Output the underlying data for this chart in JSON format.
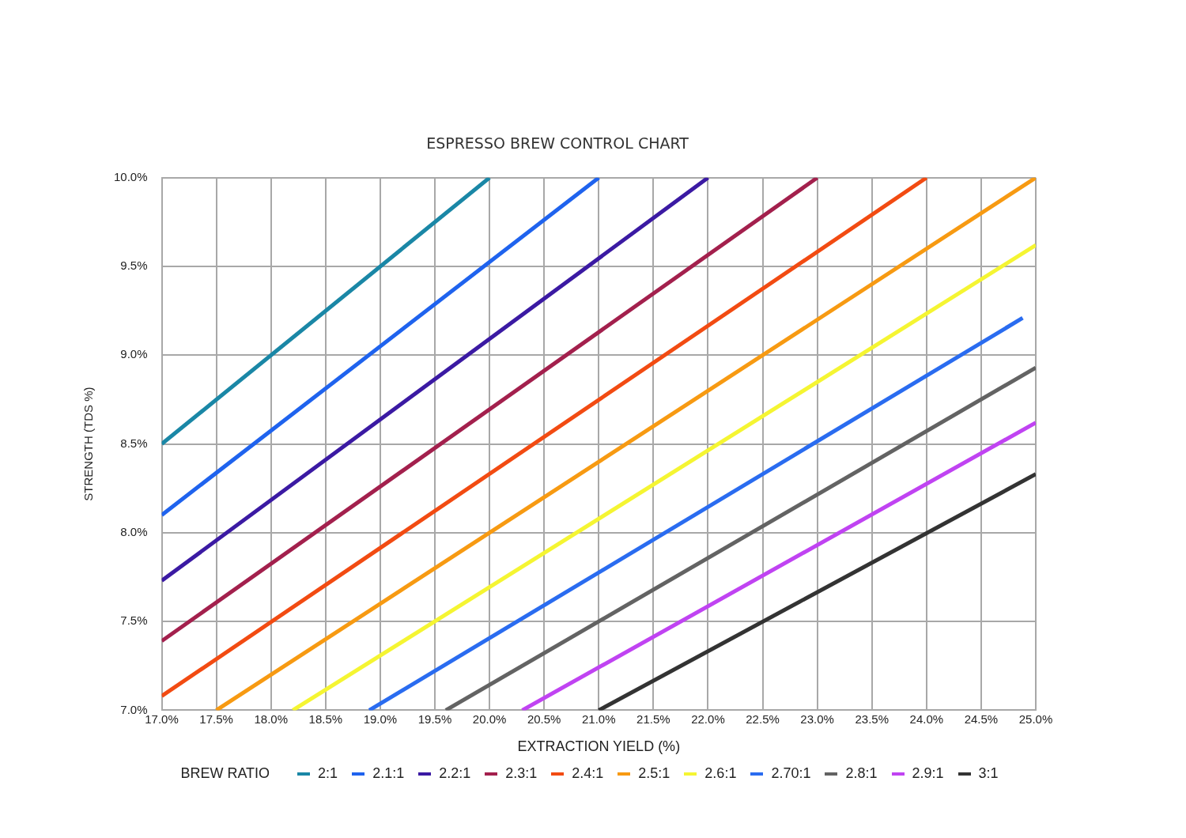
{
  "chart_data": {
    "type": "line",
    "title": "ESPRESSO BREW CONTROL CHART",
    "xlabel": "EXTRACTION YIELD (%)",
    "ylabel": "STRENGTH (TDS %)",
    "legend_title": "BREW RATIO",
    "legend": "bottom",
    "grid": true,
    "marker": "none",
    "line_style": "solid",
    "xlim": [
      17,
      25
    ],
    "ylim": [
      7,
      10
    ],
    "xticks": [
      {
        "value": 17,
        "label": "17.0%"
      },
      {
        "value": 17.5,
        "label": "17.5%"
      },
      {
        "value": 18,
        "label": "18.0%"
      },
      {
        "value": 18.5,
        "label": "18.5%"
      },
      {
        "value": 19,
        "label": "19.0%"
      },
      {
        "value": 19.5,
        "label": "19.5%"
      },
      {
        "value": 20,
        "label": "20.0%"
      },
      {
        "value": 20.5,
        "label": "20.5%"
      },
      {
        "value": 21,
        "label": "21.0%"
      },
      {
        "value": 21.5,
        "label": "21.5%"
      },
      {
        "value": 22,
        "label": "22.0%"
      },
      {
        "value": 22.5,
        "label": "22.5%"
      },
      {
        "value": 23,
        "label": "23.0%"
      },
      {
        "value": 23.5,
        "label": "23.5%"
      },
      {
        "value": 24,
        "label": "24.0%"
      },
      {
        "value": 24.5,
        "label": "24.5%"
      },
      {
        "value": 25,
        "label": "25.0%"
      }
    ],
    "yticks": [
      {
        "value": 7,
        "label": "7.0%"
      },
      {
        "value": 7.5,
        "label": "7.5%"
      },
      {
        "value": 8,
        "label": "8.0%"
      },
      {
        "value": 8.5,
        "label": "8.5%"
      },
      {
        "value": 9,
        "label": "9.0%"
      },
      {
        "value": 9.5,
        "label": "9.5%"
      },
      {
        "value": 10,
        "label": "10.0%"
      }
    ],
    "series": [
      {
        "name": "2:1",
        "color": "#1a87a6",
        "x": [
          17,
          20
        ],
        "values": [
          8.5,
          10
        ]
      },
      {
        "name": "2.1:1",
        "color": "#1f63ee",
        "x": [
          17,
          21
        ],
        "values": [
          8.1,
          10
        ]
      },
      {
        "name": "2.2:1",
        "color": "#3b1aa3",
        "x": [
          17,
          22
        ],
        "values": [
          7.73,
          10
        ]
      },
      {
        "name": "2.3:1",
        "color": "#a3204d",
        "x": [
          17,
          23
        ],
        "values": [
          7.39,
          10
        ]
      },
      {
        "name": "2.4:1",
        "color": "#f24b12",
        "x": [
          17,
          24
        ],
        "values": [
          7.08,
          10
        ]
      },
      {
        "name": "2.5:1",
        "color": "#f79a12",
        "x": [
          17.5,
          25
        ],
        "values": [
          7,
          10
        ]
      },
      {
        "name": "2.6:1",
        "color": "#f5f532",
        "x": [
          18.2,
          25
        ],
        "values": [
          7,
          9.62
        ]
      },
      {
        "name": "2.70:1",
        "color": "#2a6cf0",
        "x": [
          18.9,
          24.88
        ],
        "values": [
          7,
          9.21
        ]
      },
      {
        "name": "2.8:1",
        "color": "#636363",
        "x": [
          19.6,
          25
        ],
        "values": [
          7,
          8.93
        ]
      },
      {
        "name": "2.9:1",
        "color": "#c043f2",
        "x": [
          20.3,
          25
        ],
        "values": [
          7,
          8.62
        ]
      },
      {
        "name": "3:1",
        "color": "#333333",
        "x": [
          21,
          25
        ],
        "values": [
          7,
          8.33
        ]
      }
    ]
  }
}
